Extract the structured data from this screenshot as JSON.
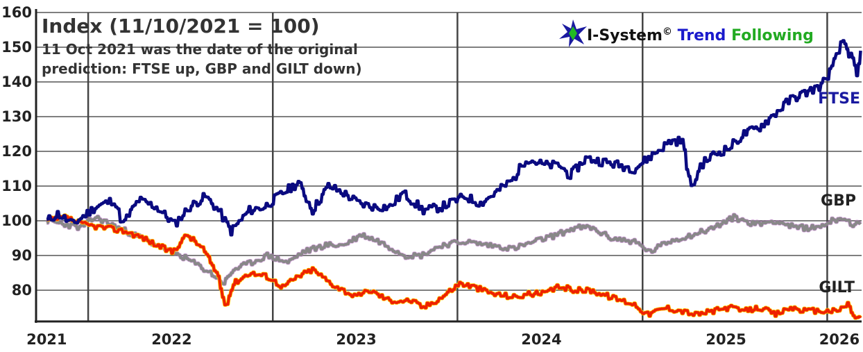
{
  "chart_data": {
    "type": "line",
    "title": "Index (11/10/2021 = 100)",
    "subtitle_lines": [
      "11 Oct 2021 was the date of the original",
      "prediction: FTSE up, GBP and GILT down)"
    ],
    "brand": {
      "name": "I-System",
      "copyright": "©",
      "word1": "Trend",
      "word2": "Following",
      "name_color": "#111111",
      "word1_color": "#1a1acc",
      "word2_color": "#22aa22"
    },
    "x_axis": {
      "type": "date",
      "range": [
        "2021-09-20",
        "2026-03-10"
      ],
      "tick_labels": [
        "2021",
        "2022",
        "2023",
        "2024",
        "2025",
        "2026"
      ],
      "tick_dates": [
        "2021-10-11",
        "2022-06-15",
        "2023-06-15",
        "2024-06-15",
        "2025-06-15",
        "2026-01-25"
      ],
      "year_boundaries": [
        "2022-01-01",
        "2023-01-01",
        "2024-01-01",
        "2025-01-01",
        "2026-01-01"
      ]
    },
    "y_axis": {
      "range": [
        71,
        160
      ],
      "ticks": [
        80,
        90,
        100,
        110,
        120,
        130,
        140,
        150,
        160
      ]
    },
    "grid": true,
    "series": [
      {
        "name": "FTSE",
        "color": "#0a0a80",
        "points": [
          [
            "2021-10-11",
            100
          ],
          [
            "2021-11-01",
            102
          ],
          [
            "2021-12-01",
            99
          ],
          [
            "2022-01-15",
            104
          ],
          [
            "2022-02-20",
            106
          ],
          [
            "2022-03-10",
            99
          ],
          [
            "2022-04-10",
            106
          ],
          [
            "2022-05-15",
            104
          ],
          [
            "2022-06-20",
            99
          ],
          [
            "2022-07-20",
            104
          ],
          [
            "2022-08-20",
            107
          ],
          [
            "2022-09-15",
            103
          ],
          [
            "2022-10-10",
            97
          ],
          [
            "2022-11-15",
            103
          ],
          [
            "2022-12-15",
            104
          ],
          [
            "2023-01-20",
            108
          ],
          [
            "2023-02-20",
            111
          ],
          [
            "2023-03-20",
            103
          ],
          [
            "2023-04-20",
            110
          ],
          [
            "2023-05-20",
            108
          ],
          [
            "2023-06-20",
            105
          ],
          [
            "2023-07-20",
            104
          ],
          [
            "2023-08-20",
            104
          ],
          [
            "2023-09-15",
            108
          ],
          [
            "2023-10-25",
            103
          ],
          [
            "2023-11-30",
            104
          ],
          [
            "2024-01-15",
            107
          ],
          [
            "2024-02-15",
            105
          ],
          [
            "2024-03-15",
            108
          ],
          [
            "2024-04-20",
            112
          ],
          [
            "2024-05-15",
            118
          ],
          [
            "2024-06-20",
            116
          ],
          [
            "2024-07-20",
            116
          ],
          [
            "2024-08-10",
            113
          ],
          [
            "2024-09-10",
            118
          ],
          [
            "2024-10-15",
            117
          ],
          [
            "2024-11-15",
            116
          ],
          [
            "2024-12-15",
            115
          ],
          [
            "2025-01-20",
            119
          ],
          [
            "2025-02-25",
            123
          ],
          [
            "2025-03-20",
            123
          ],
          [
            "2025-04-07",
            109
          ],
          [
            "2025-04-25",
            116
          ],
          [
            "2025-05-20",
            119
          ],
          [
            "2025-06-20",
            121
          ],
          [
            "2025-07-20",
            125
          ],
          [
            "2025-08-20",
            127
          ],
          [
            "2025-09-20",
            131
          ],
          [
            "2025-10-20",
            135
          ],
          [
            "2025-11-20",
            137
          ],
          [
            "2025-12-20",
            139
          ],
          [
            "2026-01-10",
            144
          ],
          [
            "2026-02-01",
            152
          ],
          [
            "2026-02-20",
            146
          ],
          [
            "2026-02-28",
            141
          ],
          [
            "2026-03-08",
            149
          ]
        ]
      },
      {
        "name": "GBP",
        "color": "#888888",
        "points": [
          [
            "2021-10-11",
            100
          ],
          [
            "2021-11-15",
            99
          ],
          [
            "2021-12-15",
            98
          ],
          [
            "2022-01-15",
            101
          ],
          [
            "2022-03-01",
            98
          ],
          [
            "2022-04-15",
            95
          ],
          [
            "2022-06-01",
            92
          ],
          [
            "2022-07-15",
            89
          ],
          [
            "2022-08-30",
            85
          ],
          [
            "2022-09-26",
            82
          ],
          [
            "2022-10-15",
            86
          ],
          [
            "2022-11-20",
            88
          ],
          [
            "2022-12-20",
            90
          ],
          [
            "2023-01-30",
            88
          ],
          [
            "2023-03-01",
            91
          ],
          [
            "2023-04-15",
            93
          ],
          [
            "2023-05-20",
            93
          ],
          [
            "2023-06-25",
            96
          ],
          [
            "2023-07-30",
            94
          ],
          [
            "2023-09-20",
            90
          ],
          [
            "2023-10-20",
            90
          ],
          [
            "2023-11-30",
            93
          ],
          [
            "2024-01-15",
            94
          ],
          [
            "2024-03-01",
            93
          ],
          [
            "2024-04-20",
            92
          ],
          [
            "2024-06-01",
            94
          ],
          [
            "2024-07-15",
            96
          ],
          [
            "2024-08-20",
            98
          ],
          [
            "2024-09-20",
            98
          ],
          [
            "2024-10-30",
            95
          ],
          [
            "2024-12-15",
            94
          ],
          [
            "2025-01-15",
            91
          ],
          [
            "2025-02-20",
            94
          ],
          [
            "2025-04-10",
            96
          ],
          [
            "2025-05-20",
            98
          ],
          [
            "2025-06-30",
            101
          ],
          [
            "2025-08-10",
            99
          ],
          [
            "2025-09-20",
            100
          ],
          [
            "2025-10-30",
            98
          ],
          [
            "2025-12-10",
            98
          ],
          [
            "2026-01-10",
            100
          ],
          [
            "2026-01-30",
            101
          ],
          [
            "2026-02-20",
            99
          ],
          [
            "2026-03-08",
            99
          ]
        ]
      },
      {
        "name": "GILT",
        "color": "#ee2200",
        "points": [
          [
            "2021-10-11",
            100
          ],
          [
            "2021-11-15",
            101
          ],
          [
            "2021-12-20",
            99
          ],
          [
            "2022-02-01",
            98
          ],
          [
            "2022-03-15",
            97
          ],
          [
            "2022-04-20",
            95
          ],
          [
            "2022-05-15",
            93
          ],
          [
            "2022-06-15",
            91
          ],
          [
            "2022-07-15",
            96
          ],
          [
            "2022-08-15",
            92
          ],
          [
            "2022-09-15",
            84
          ],
          [
            "2022-09-28",
            75
          ],
          [
            "2022-10-15",
            82
          ],
          [
            "2022-11-15",
            85
          ],
          [
            "2022-12-20",
            84
          ],
          [
            "2023-01-20",
            81
          ],
          [
            "2023-02-20",
            84
          ],
          [
            "2023-03-20",
            86
          ],
          [
            "2023-04-25",
            82
          ],
          [
            "2023-05-20",
            80
          ],
          [
            "2023-06-15",
            78
          ],
          [
            "2023-07-10",
            80
          ],
          [
            "2023-08-20",
            77
          ],
          [
            "2023-10-01",
            77
          ],
          [
            "2023-10-25",
            75
          ],
          [
            "2023-11-30",
            78
          ],
          [
            "2024-01-05",
            82
          ],
          [
            "2024-02-01",
            81
          ],
          [
            "2024-03-10",
            79
          ],
          [
            "2024-04-25",
            78
          ],
          [
            "2024-05-20",
            79
          ],
          [
            "2024-06-20",
            79
          ],
          [
            "2024-07-20",
            81
          ],
          [
            "2024-08-20",
            80
          ],
          [
            "2024-09-20",
            80
          ],
          [
            "2024-10-30",
            78
          ],
          [
            "2024-12-15",
            76
          ],
          [
            "2025-01-10",
            73
          ],
          [
            "2025-02-15",
            75
          ],
          [
            "2025-03-20",
            74
          ],
          [
            "2025-04-15",
            73
          ],
          [
            "2025-05-20",
            74
          ],
          [
            "2025-06-20",
            75
          ],
          [
            "2025-07-20",
            74
          ],
          [
            "2025-08-20",
            75
          ],
          [
            "2025-09-20",
            73
          ],
          [
            "2025-10-20",
            75
          ],
          [
            "2025-11-20",
            74
          ],
          [
            "2025-12-20",
            74
          ],
          [
            "2026-01-20",
            74
          ],
          [
            "2026-02-10",
            76
          ],
          [
            "2026-02-25",
            72
          ],
          [
            "2026-03-08",
            72
          ]
        ]
      }
    ]
  }
}
